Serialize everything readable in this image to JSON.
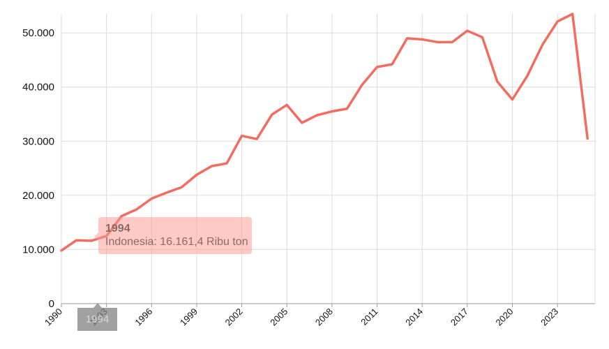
{
  "chart_data": {
    "type": "line",
    "title": "",
    "xlabel": "",
    "ylabel": "",
    "ylim": [
      0,
      53500
    ],
    "xlim": [
      1990,
      2025.5
    ],
    "y_ticks": [
      0,
      10000,
      20000,
      30000,
      40000,
      50000
    ],
    "y_tick_labels": [
      "0",
      "10.000",
      "20.000",
      "30.000",
      "40.000",
      "50.000"
    ],
    "x_ticks": [
      1990,
      1993,
      1996,
      1999,
      2002,
      2005,
      2008,
      2011,
      2014,
      2017,
      2020,
      2023
    ],
    "x_tick_labels": [
      "1990",
      "1993",
      "1996",
      "1999",
      "2002",
      "2005",
      "2008",
      "2011",
      "2014",
      "2017",
      "2020",
      "2023"
    ],
    "grid": true,
    "legend": "none",
    "series": [
      {
        "name": "Indonesia",
        "color": "#f36c60",
        "x": [
          1990,
          1991,
          1992,
          1993,
          1994,
          1995,
          1996,
          1997,
          1998,
          1999,
          2000,
          2001,
          2002,
          2003,
          2004,
          2005,
          2006,
          2007,
          2008,
          2009,
          2010,
          2011,
          2012,
          2013,
          2014,
          2015,
          2016,
          2017,
          2018,
          2019,
          2020,
          2021,
          2022,
          2023,
          2024,
          2025
        ],
        "values": [
          9800,
          11700,
          11600,
          12500,
          16161.4,
          17400,
          19400,
          20500,
          21500,
          23800,
          25400,
          25900,
          31000,
          30400,
          34900,
          36700,
          33400,
          34800,
          35500,
          36000,
          40400,
          43700,
          44200,
          49000,
          48800,
          48300,
          48300,
          50400,
          49200,
          41000,
          37700,
          42100,
          47800,
          52100,
          53500,
          30500
        ]
      }
    ]
  },
  "tooltip": {
    "title": "1994",
    "text": "Indonesia: 16.161,4 Ribu ton",
    "x": 1994,
    "value": 16161.4
  },
  "crosshair": {
    "label": "1994"
  }
}
